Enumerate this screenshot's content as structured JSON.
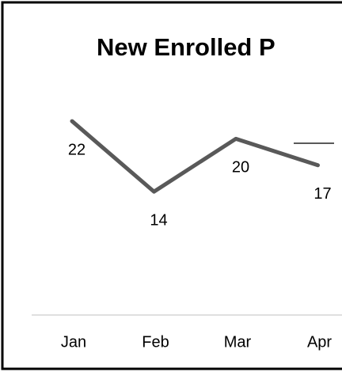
{
  "chart_data": {
    "type": "line",
    "title": "New Enrolled P",
    "categories": [
      "Jan",
      "Feb",
      "Mar",
      "Apr"
    ],
    "series": [
      {
        "color": "#595959",
        "values": [
          22,
          14,
          20,
          17
        ]
      }
    ],
    "ylim": [
      0,
      30
    ]
  }
}
